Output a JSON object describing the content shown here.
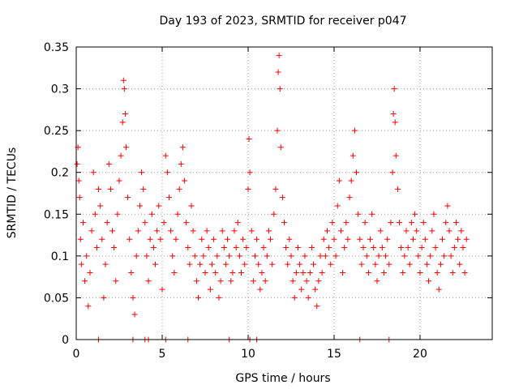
{
  "chart_data": {
    "type": "scatter",
    "title": "Day 193 of 2023, SRMTID for receiver p047",
    "xlabel": "GPS time / hours",
    "ylabel": "SRMTID / TECUs",
    "xlim": [
      0,
      24.2
    ],
    "ylim": [
      0,
      0.35
    ],
    "x_ticks": [
      0,
      5,
      10,
      15,
      20
    ],
    "x_tick_labels": [
      "0",
      "5",
      "10",
      "15",
      "20"
    ],
    "y_ticks": [
      0,
      0.05,
      0.1,
      0.15,
      0.2,
      0.25,
      0.3,
      0.35
    ],
    "y_tick_labels": [
      "0",
      "0.05",
      "0.1",
      "0.15",
      "0.2",
      "0.25",
      "0.3",
      "0.35"
    ],
    "grid": true,
    "series": [
      {
        "name": "SRMTID",
        "color": "#ff0000",
        "marker": "plus",
        "points": [
          [
            0.05,
            0.21
          ],
          [
            0.1,
            0.23
          ],
          [
            0.15,
            0.19
          ],
          [
            0.2,
            0.17
          ],
          [
            0.25,
            0.12
          ],
          [
            0.3,
            0.09
          ],
          [
            0.4,
            0.14
          ],
          [
            0.5,
            0.07
          ],
          [
            0.6,
            0.1
          ],
          [
            0.7,
            0.04
          ],
          [
            0.8,
            0.08
          ],
          [
            0.9,
            0.13
          ],
          [
            1.0,
            0.2
          ],
          [
            1.1,
            0.15
          ],
          [
            1.2,
            0.11
          ],
          [
            1.3,
            0.18
          ],
          [
            1.4,
            0.16
          ],
          [
            1.5,
            0.12
          ],
          [
            1.6,
            0.05
          ],
          [
            1.7,
            0.09
          ],
          [
            1.8,
            0.14
          ],
          [
            1.9,
            0.21
          ],
          [
            2.0,
            0.18
          ],
          [
            2.1,
            0.13
          ],
          [
            2.2,
            0.11
          ],
          [
            2.3,
            0.07
          ],
          [
            2.4,
            0.15
          ],
          [
            2.5,
            0.19
          ],
          [
            2.6,
            0.22
          ],
          [
            2.7,
            0.26
          ],
          [
            2.75,
            0.31
          ],
          [
            2.8,
            0.3
          ],
          [
            2.85,
            0.27
          ],
          [
            2.9,
            0.23
          ],
          [
            3.0,
            0.17
          ],
          [
            3.1,
            0.12
          ],
          [
            3.2,
            0.08
          ],
          [
            3.3,
            0.05
          ],
          [
            3.4,
            0.03
          ],
          [
            3.5,
            0.1
          ],
          [
            3.6,
            0.13
          ],
          [
            3.7,
            0.16
          ],
          [
            3.8,
            0.2
          ],
          [
            3.9,
            0.18
          ],
          [
            4.0,
            0.14
          ],
          [
            4.1,
            0.1
          ],
          [
            4.2,
            0.07
          ],
          [
            4.3,
            0.12
          ],
          [
            4.4,
            0.15
          ],
          [
            4.5,
            0.11
          ],
          [
            4.6,
            0.09
          ],
          [
            4.7,
            0.13
          ],
          [
            4.8,
            0.16
          ],
          [
            4.9,
            0.12
          ],
          [
            5.0,
            0.06
          ],
          [
            5.1,
            0.14
          ],
          [
            5.2,
            0.22
          ],
          [
            5.3,
            0.2
          ],
          [
            5.4,
            0.17
          ],
          [
            5.5,
            0.13
          ],
          [
            5.6,
            0.1
          ],
          [
            5.7,
            0.08
          ],
          [
            5.8,
            0.12
          ],
          [
            5.9,
            0.15
          ],
          [
            6.0,
            0.18
          ],
          [
            6.1,
            0.21
          ],
          [
            6.2,
            0.23
          ],
          [
            6.3,
            0.19
          ],
          [
            6.4,
            0.14
          ],
          [
            6.5,
            0.11
          ],
          [
            6.6,
            0.09
          ],
          [
            6.7,
            0.16
          ],
          [
            6.8,
            0.13
          ],
          [
            6.9,
            0.1
          ],
          [
            7.0,
            0.07
          ],
          [
            7.1,
            0.05
          ],
          [
            7.2,
            0.09
          ],
          [
            7.3,
            0.12
          ],
          [
            7.4,
            0.1
          ],
          [
            7.5,
            0.08
          ],
          [
            7.6,
            0.13
          ],
          [
            7.7,
            0.11
          ],
          [
            7.8,
            0.06
          ],
          [
            7.9,
            0.09
          ],
          [
            8.0,
            0.12
          ],
          [
            8.1,
            0.08
          ],
          [
            8.2,
            0.1
          ],
          [
            8.3,
            0.05
          ],
          [
            8.4,
            0.07
          ],
          [
            8.5,
            0.13
          ],
          [
            8.6,
            0.11
          ],
          [
            8.7,
            0.09
          ],
          [
            8.8,
            0.12
          ],
          [
            8.9,
            0.1
          ],
          [
            9.0,
            0.07
          ],
          [
            9.1,
            0.08
          ],
          [
            9.2,
            0.13
          ],
          [
            9.3,
            0.11
          ],
          [
            9.4,
            0.14
          ],
          [
            9.5,
            0.1
          ],
          [
            9.6,
            0.08
          ],
          [
            9.7,
            0.12
          ],
          [
            9.8,
            0.09
          ],
          [
            9.9,
            0.11
          ],
          [
            10.0,
            0.18
          ],
          [
            10.05,
            0.24
          ],
          [
            10.1,
            0.2
          ],
          [
            10.2,
            0.13
          ],
          [
            10.3,
            0.07
          ],
          [
            10.4,
            0.1
          ],
          [
            10.5,
            0.12
          ],
          [
            10.6,
            0.09
          ],
          [
            10.7,
            0.06
          ],
          [
            10.8,
            0.08
          ],
          [
            10.9,
            0.11
          ],
          [
            11.0,
            0.07
          ],
          [
            11.1,
            0.1
          ],
          [
            11.2,
            0.13
          ],
          [
            11.3,
            0.12
          ],
          [
            11.4,
            0.09
          ],
          [
            11.5,
            0.15
          ],
          [
            11.6,
            0.18
          ],
          [
            11.7,
            0.25
          ],
          [
            11.75,
            0.32
          ],
          [
            11.8,
            0.34
          ],
          [
            11.85,
            0.3
          ],
          [
            11.9,
            0.23
          ],
          [
            12.0,
            0.17
          ],
          [
            12.1,
            0.14
          ],
          [
            12.2,
            0.11
          ],
          [
            12.3,
            0.09
          ],
          [
            12.4,
            0.12
          ],
          [
            12.5,
            0.1
          ],
          [
            12.6,
            0.07
          ],
          [
            12.7,
            0.05
          ],
          [
            12.8,
            0.08
          ],
          [
            12.9,
            0.11
          ],
          [
            13.0,
            0.09
          ],
          [
            13.1,
            0.06
          ],
          [
            13.2,
            0.08
          ],
          [
            13.3,
            0.1
          ],
          [
            13.4,
            0.07
          ],
          [
            13.5,
            0.05
          ],
          [
            13.6,
            0.08
          ],
          [
            13.7,
            0.11
          ],
          [
            13.8,
            0.09
          ],
          [
            13.9,
            0.06
          ],
          [
            14.0,
            0.04
          ],
          [
            14.1,
            0.07
          ],
          [
            14.2,
            0.1
          ],
          [
            14.3,
            0.08
          ],
          [
            14.4,
            0.12
          ],
          [
            14.5,
            0.1
          ],
          [
            14.6,
            0.13
          ],
          [
            14.7,
            0.11
          ],
          [
            14.8,
            0.09
          ],
          [
            14.9,
            0.14
          ],
          [
            15.0,
            0.12
          ],
          [
            15.1,
            0.1
          ],
          [
            15.2,
            0.16
          ],
          [
            15.3,
            0.19
          ],
          [
            15.4,
            0.13
          ],
          [
            15.5,
            0.08
          ],
          [
            15.6,
            0.11
          ],
          [
            15.7,
            0.14
          ],
          [
            15.8,
            0.12
          ],
          [
            15.9,
            0.17
          ],
          [
            16.0,
            0.19
          ],
          [
            16.1,
            0.22
          ],
          [
            16.2,
            0.25
          ],
          [
            16.3,
            0.2
          ],
          [
            16.4,
            0.15
          ],
          [
            16.5,
            0.12
          ],
          [
            16.6,
            0.09
          ],
          [
            16.7,
            0.11
          ],
          [
            16.8,
            0.14
          ],
          [
            16.9,
            0.1
          ],
          [
            17.0,
            0.08
          ],
          [
            17.1,
            0.12
          ],
          [
            17.2,
            0.15
          ],
          [
            17.3,
            0.11
          ],
          [
            17.4,
            0.09
          ],
          [
            17.5,
            0.07
          ],
          [
            17.6,
            0.1
          ],
          [
            17.7,
            0.13
          ],
          [
            17.8,
            0.11
          ],
          [
            17.9,
            0.08
          ],
          [
            18.0,
            0.1
          ],
          [
            18.1,
            0.12
          ],
          [
            18.2,
            0.09
          ],
          [
            18.3,
            0.14
          ],
          [
            18.4,
            0.2
          ],
          [
            18.45,
            0.27
          ],
          [
            18.5,
            0.3
          ],
          [
            18.55,
            0.26
          ],
          [
            18.6,
            0.22
          ],
          [
            18.7,
            0.18
          ],
          [
            18.8,
            0.14
          ],
          [
            18.9,
            0.11
          ],
          [
            19.0,
            0.08
          ],
          [
            19.1,
            0.1
          ],
          [
            19.2,
            0.13
          ],
          [
            19.3,
            0.11
          ],
          [
            19.4,
            0.09
          ],
          [
            19.5,
            0.14
          ],
          [
            19.6,
            0.12
          ],
          [
            19.7,
            0.15
          ],
          [
            19.8,
            0.13
          ],
          [
            19.9,
            0.1
          ],
          [
            20.0,
            0.08
          ],
          [
            20.1,
            0.11
          ],
          [
            20.2,
            0.14
          ],
          [
            20.3,
            0.12
          ],
          [
            20.4,
            0.09
          ],
          [
            20.5,
            0.07
          ],
          [
            20.6,
            0.1
          ],
          [
            20.7,
            0.13
          ],
          [
            20.8,
            0.15
          ],
          [
            20.9,
            0.11
          ],
          [
            21.0,
            0.08
          ],
          [
            21.1,
            0.06
          ],
          [
            21.2,
            0.09
          ],
          [
            21.3,
            0.12
          ],
          [
            21.4,
            0.1
          ],
          [
            21.5,
            0.14
          ],
          [
            21.6,
            0.16
          ],
          [
            21.7,
            0.13
          ],
          [
            21.8,
            0.1
          ],
          [
            21.9,
            0.08
          ],
          [
            22.0,
            0.11
          ],
          [
            22.1,
            0.14
          ],
          [
            22.2,
            0.12
          ],
          [
            22.3,
            0.09
          ],
          [
            22.4,
            0.13
          ],
          [
            22.5,
            0.11
          ],
          [
            22.6,
            0.08
          ],
          [
            22.7,
            0.12
          ]
        ]
      }
    ],
    "zero_points_x": [
      1.3,
      3.3,
      4.0,
      4.2,
      5.2,
      6.5,
      8.9,
      10.1,
      10.5,
      16.5,
      18.2
    ]
  }
}
